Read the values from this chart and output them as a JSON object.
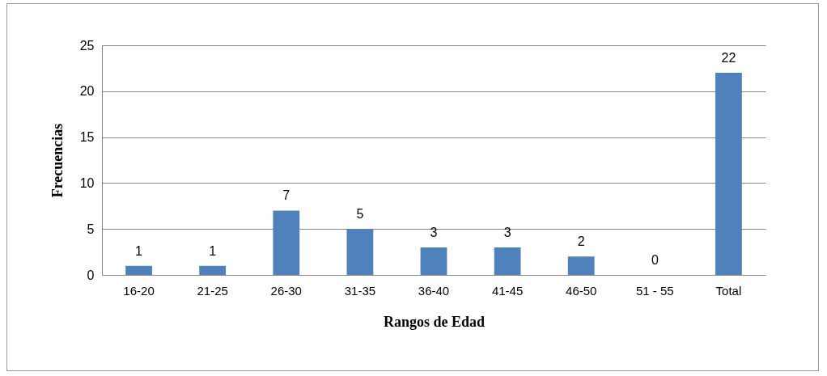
{
  "chart_data": {
    "type": "bar",
    "xlabel": "Rangos de Edad",
    "ylabel": "Frecuencias",
    "categories": [
      "16-20",
      "21-25",
      "26-30",
      "31-35",
      "36-40",
      "41-45",
      "46-50",
      "51 - 55",
      "Total"
    ],
    "values": [
      1,
      1,
      7,
      5,
      3,
      3,
      2,
      0,
      22
    ],
    "color": "#4f81bd",
    "ylim": [
      0,
      25
    ],
    "yticks": [
      0,
      5,
      10,
      15,
      20,
      25
    ],
    "grid": "y",
    "data_labels": true
  }
}
